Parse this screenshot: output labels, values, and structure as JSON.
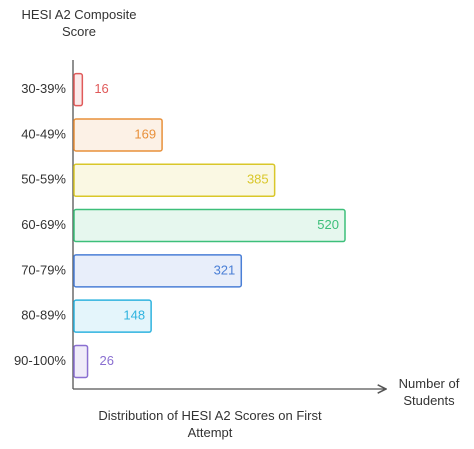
{
  "chart_data": {
    "type": "hbar",
    "title": "Distribution of HESI A2 Scores on First Attempt",
    "y_label": "HESI A2 Composite Score",
    "x_label": "Number of Students",
    "categories": [
      "30-39%",
      "40-49%",
      "50-59%",
      "60-69%",
      "70-79%",
      "80-89%",
      "90-100%"
    ],
    "values": [
      16,
      169,
      385,
      520,
      321,
      148,
      26
    ],
    "colors": [
      "#e05a5a",
      "#e8903a",
      "#d9c72a",
      "#3dbf7a",
      "#4a7fd6",
      "#2fb3df",
      "#8a6fd1"
    ]
  }
}
